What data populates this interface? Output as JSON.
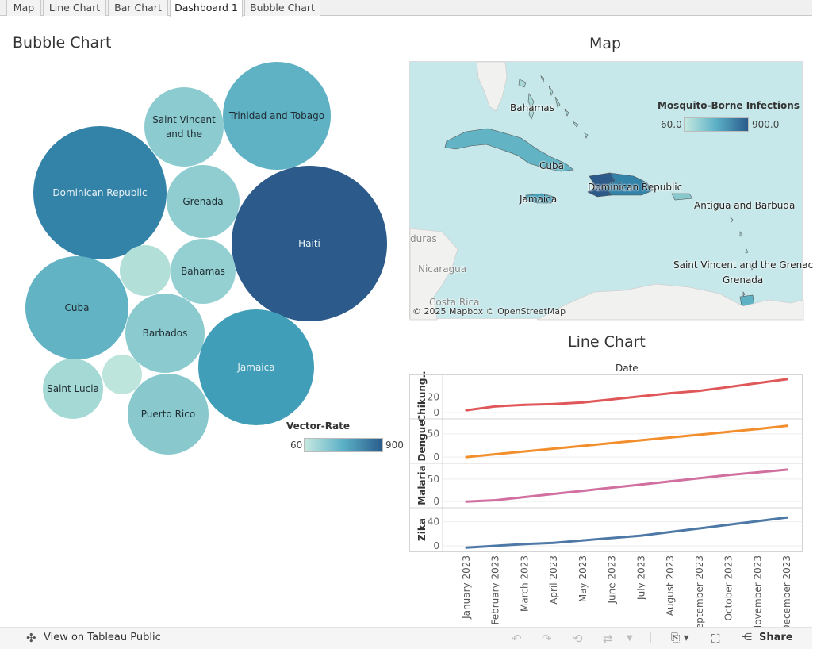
{
  "tabs": [
    "Map",
    "Line Chart",
    "Bar Chart",
    "Dashboard 1",
    "Bubble Chart"
  ],
  "active_tab": "Dashboard 1",
  "bubble": {
    "title": "Bubble Chart",
    "legend_title": "Vector-Rate",
    "legend_min": "60",
    "legend_max": "900",
    "items": [
      {
        "label": "Trinidad and Tobago",
        "color": "#5fb1c4",
        "text": "#1f2d33"
      },
      {
        "label": "Saint Vincent and the",
        "color": "#8ccbd0",
        "text": "#1f2d33"
      },
      {
        "label": "Dominican Republic",
        "color": "#3382a8",
        "text": "#e8f2f6"
      },
      {
        "label": "Grenada",
        "color": "#8fcdd1",
        "text": "#1f2d33"
      },
      {
        "label": "Haiti",
        "color": "#2c5a8a",
        "text": "#e8f2f6"
      },
      {
        "label": "",
        "color": "#b2e0d9",
        "text": "#1f2d33"
      },
      {
        "label": "Bahamas",
        "color": "#94d0d2",
        "text": "#1f2d33"
      },
      {
        "label": "Cuba",
        "color": "#62b3c4",
        "text": "#1f2d33"
      },
      {
        "label": "Barbados",
        "color": "#8bcbcf",
        "text": "#1f2d33"
      },
      {
        "label": "Jamaica",
        "color": "#419eb8",
        "text": "#e8f2f6"
      },
      {
        "label": "Saint Lucia",
        "color": "#a4d9d5",
        "text": "#1f2d33"
      },
      {
        "label": "",
        "color": "#bde5dc",
        "text": "#1f2d33"
      },
      {
        "label": "Puerto Rico",
        "color": "#89c9ce",
        "text": "#1f2d33"
      }
    ]
  },
  "map": {
    "title": "Map",
    "legend_title": "Mosquito-Borne Infections",
    "legend_min": "60.0",
    "legend_max": "900.0",
    "labels": {
      "bahamas": "Bahamas",
      "cuba": "Cuba",
      "dominican_republic": "Dominican Republic",
      "jamaica": "Jamaica",
      "antigua": "Antigua and Barbuda",
      "svg_line1": "Saint Vincent and the Grenac",
      "grenada": "Grenada",
      "honduras": "duras",
      "nicaragua": "Nicaragua",
      "costa_rica": "Costa Rica"
    },
    "attribution": "© 2025 Mapbox  © OpenStreetMap"
  },
  "line": {
    "title": "Line Chart",
    "axis_header": "Date"
  },
  "chart_data": {
    "type": "line",
    "title": "Line Chart",
    "xlabel": "Date",
    "categories": [
      "January 2023",
      "February 2023",
      "March 2023",
      "April 2023",
      "May 2023",
      "June 2023",
      "July 2023",
      "August 2023",
      "September 2023",
      "October 2023",
      "November 2023",
      "December 2023"
    ],
    "series": [
      {
        "name": "Chikung..",
        "color": "#e05759",
        "ticks": [
          0,
          20
        ],
        "ylim": [
          -3,
          45
        ],
        "values": [
          3,
          8,
          10,
          11,
          13,
          17,
          21,
          25,
          28,
          33,
          38,
          43
        ]
      },
      {
        "name": "Dengue",
        "color": "#f28e2c",
        "ticks": [
          0,
          50
        ],
        "ylim": [
          -5,
          75
        ],
        "values": [
          0,
          6,
          12,
          18,
          24,
          30,
          36,
          42,
          48,
          54,
          60,
          67
        ]
      },
      {
        "name": "Malaria",
        "color": "#d16fa0",
        "ticks": [
          0,
          50
        ],
        "ylim": [
          -5,
          78
        ],
        "values": [
          0,
          3,
          10,
          17,
          24,
          31,
          38,
          45,
          52,
          59,
          65,
          71
        ]
      },
      {
        "name": "Zika",
        "color": "#4e79a7",
        "ticks": [
          0,
          40
        ],
        "ylim": [
          -4,
          58
        ],
        "values": [
          -3,
          0,
          3,
          5,
          9,
          13,
          17,
          23,
          29,
          35,
          41,
          47
        ]
      }
    ]
  },
  "toolbar": {
    "view_label": "View on Tableau Public",
    "share_label": "Share"
  }
}
